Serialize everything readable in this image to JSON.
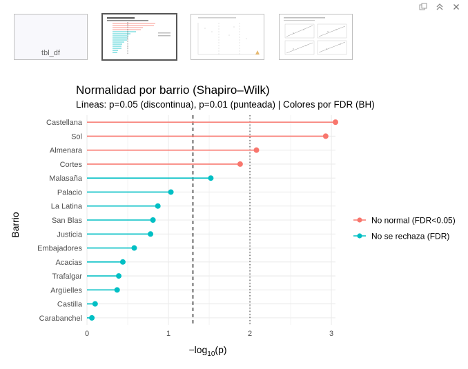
{
  "window_icons": {
    "popout": "popout-icon",
    "collapse": "chevron-double-up-icon",
    "close": "close-icon"
  },
  "thumbnails": [
    {
      "label": "tbl_df",
      "selected": false
    },
    {
      "label": "",
      "selected": true
    },
    {
      "label": "",
      "selected": false
    },
    {
      "label": "",
      "selected": false
    }
  ],
  "colors": {
    "normal": "#F8766D",
    "no_rechaza": "#00BFC4",
    "grid": "#ebebeb",
    "text": "#4d4d4d"
  },
  "chart_data": {
    "type": "lollipop",
    "title": "Normalidad por barrio (Shapiro–Wilk)",
    "subtitle": "Líneas: p=0.05 (discontinua), p=0.01 (punteada) | Colores por FDR (BH)",
    "ylabel": "Barrio",
    "xlabel_prefix": "−log",
    "xlabel_sub": "10",
    "xlabel_suffix": "(p)",
    "xlim": [
      0,
      3.05
    ],
    "x_ticks": [
      0,
      1,
      2,
      3
    ],
    "x_tick_labels": [
      "0",
      "1",
      "2",
      "3"
    ],
    "reference_lines": [
      {
        "x": 1.301,
        "style": "dashed",
        "p": 0.05
      },
      {
        "x": 2.0,
        "style": "dotted",
        "p": 0.01
      }
    ],
    "legend": {
      "position": "right",
      "entries": [
        {
          "label": "No normal (FDR<0.05)",
          "group": "normal"
        },
        {
          "label": "No se rechaza (FDR)",
          "group": "no_rechaza"
        }
      ]
    },
    "points": [
      {
        "barrio": "Castellana",
        "value": 3.05,
        "group": "normal"
      },
      {
        "barrio": "Sol",
        "value": 2.93,
        "group": "normal"
      },
      {
        "barrio": "Almenara",
        "value": 2.08,
        "group": "normal"
      },
      {
        "barrio": "Cortes",
        "value": 1.88,
        "group": "normal"
      },
      {
        "barrio": "Malasaña",
        "value": 1.52,
        "group": "no_rechaza"
      },
      {
        "barrio": "Palacio",
        "value": 1.03,
        "group": "no_rechaza"
      },
      {
        "barrio": "La Latina",
        "value": 0.87,
        "group": "no_rechaza"
      },
      {
        "barrio": "San Blas",
        "value": 0.81,
        "group": "no_rechaza"
      },
      {
        "barrio": "Justicia",
        "value": 0.78,
        "group": "no_rechaza"
      },
      {
        "barrio": "Embajadores",
        "value": 0.58,
        "group": "no_rechaza"
      },
      {
        "barrio": "Acacias",
        "value": 0.44,
        "group": "no_rechaza"
      },
      {
        "barrio": "Trafalgar",
        "value": 0.39,
        "group": "no_rechaza"
      },
      {
        "barrio": "Argüelles",
        "value": 0.37,
        "group": "no_rechaza"
      },
      {
        "barrio": "Castilla",
        "value": 0.1,
        "group": "no_rechaza"
      },
      {
        "barrio": "Carabanchel",
        "value": 0.06,
        "group": "no_rechaza"
      }
    ]
  }
}
